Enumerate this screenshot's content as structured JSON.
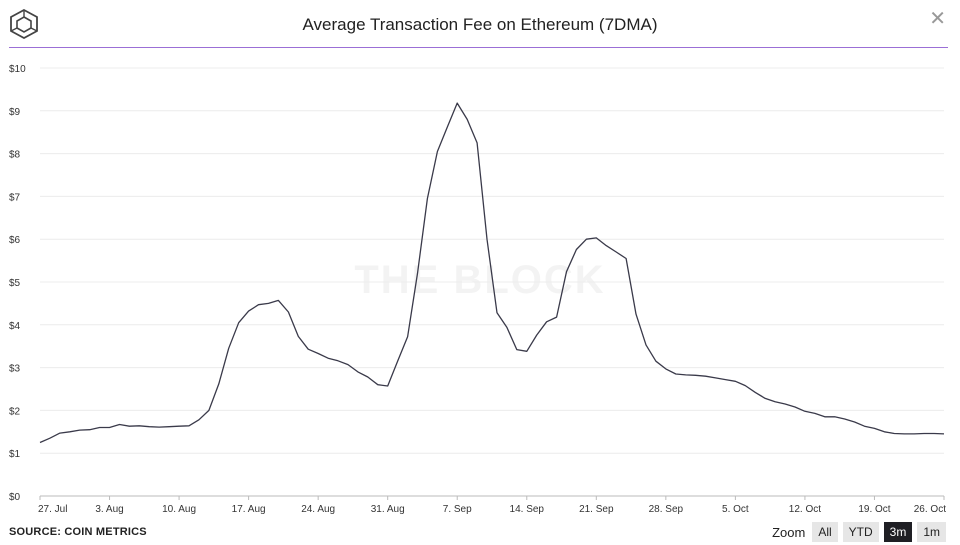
{
  "header": {
    "title": "Average Transaction Fee on Ethereum (7DMA)",
    "logo_icon": "cube-logo-icon",
    "close_label": "✕"
  },
  "watermark": "THE BLOCK",
  "footer": {
    "source": "SOURCE: COIN METRICS",
    "zoom_label": "Zoom",
    "zoom_buttons": [
      {
        "label": "All",
        "active": false
      },
      {
        "label": "YTD",
        "active": false
      },
      {
        "label": "3m",
        "active": true
      },
      {
        "label": "1m",
        "active": false
      }
    ]
  },
  "colors": {
    "accent_rule": "#9b6fd6",
    "line": "#3a3a4a",
    "grid": "#ececec",
    "active_button": "#1f1f24"
  },
  "chart_data": {
    "type": "line",
    "title": "Average Transaction Fee on Ethereum (7DMA)",
    "xlabel": "",
    "ylabel": "",
    "ylim": [
      0,
      10
    ],
    "yticks": [
      "$0",
      "$1",
      "$2",
      "$3",
      "$4",
      "$5",
      "$6",
      "$7",
      "$8",
      "$9",
      "$10"
    ],
    "xticks": [
      "27. Jul",
      "3. Aug",
      "10. Aug",
      "17. Aug",
      "24. Aug",
      "31. Aug",
      "7. Sep",
      "14. Sep",
      "21. Sep",
      "28. Sep",
      "5. Oct",
      "12. Oct",
      "19. Oct",
      "26. Oct"
    ],
    "grid": true,
    "legend": "none",
    "series": [
      {
        "values": [
          [
            0,
            1.25
          ],
          [
            1,
            1.35
          ],
          [
            2,
            1.47
          ],
          [
            3,
            1.5
          ],
          [
            4,
            1.54
          ],
          [
            5,
            1.55
          ],
          [
            6,
            1.6
          ],
          [
            7,
            1.6
          ],
          [
            8,
            1.67
          ],
          [
            9,
            1.63
          ],
          [
            10,
            1.64
          ],
          [
            11,
            1.62
          ],
          [
            12,
            1.61
          ],
          [
            13,
            1.62
          ],
          [
            14,
            1.63
          ],
          [
            15,
            1.64
          ],
          [
            16,
            1.78
          ],
          [
            17,
            2.0
          ],
          [
            18,
            2.62
          ],
          [
            19,
            3.45
          ],
          [
            20,
            4.05
          ],
          [
            21,
            4.32
          ],
          [
            22,
            4.47
          ],
          [
            23,
            4.5
          ],
          [
            24,
            4.57
          ],
          [
            25,
            4.3
          ],
          [
            26,
            3.73
          ],
          [
            27,
            3.43
          ],
          [
            28,
            3.33
          ],
          [
            29,
            3.22
          ],
          [
            30,
            3.16
          ],
          [
            31,
            3.07
          ],
          [
            32,
            2.9
          ],
          [
            33,
            2.78
          ],
          [
            34,
            2.6
          ],
          [
            35,
            2.57
          ],
          [
            36,
            3.15
          ],
          [
            37,
            3.72
          ],
          [
            38,
            5.2
          ],
          [
            39,
            6.95
          ],
          [
            40,
            8.05
          ],
          [
            41,
            8.62
          ],
          [
            42,
            9.18
          ],
          [
            43,
            8.8
          ],
          [
            44,
            8.25
          ],
          [
            45,
            6.0
          ],
          [
            46,
            4.28
          ],
          [
            47,
            3.94
          ],
          [
            48,
            3.42
          ],
          [
            49,
            3.38
          ],
          [
            50,
            3.76
          ],
          [
            51,
            4.07
          ],
          [
            52,
            4.18
          ],
          [
            53,
            5.24
          ],
          [
            54,
            5.76
          ],
          [
            55,
            6.0
          ],
          [
            56,
            6.03
          ],
          [
            57,
            5.85
          ],
          [
            58,
            5.7
          ],
          [
            59,
            5.55
          ],
          [
            60,
            4.25
          ],
          [
            61,
            3.53
          ],
          [
            62,
            3.15
          ],
          [
            63,
            2.97
          ],
          [
            64,
            2.85
          ],
          [
            65,
            2.83
          ],
          [
            66,
            2.82
          ],
          [
            67,
            2.8
          ],
          [
            68,
            2.76
          ],
          [
            69,
            2.72
          ],
          [
            70,
            2.68
          ],
          [
            71,
            2.58
          ],
          [
            72,
            2.42
          ],
          [
            73,
            2.28
          ],
          [
            74,
            2.2
          ],
          [
            75,
            2.15
          ],
          [
            76,
            2.08
          ],
          [
            77,
            1.98
          ],
          [
            78,
            1.93
          ],
          [
            79,
            1.85
          ],
          [
            80,
            1.85
          ],
          [
            81,
            1.8
          ],
          [
            82,
            1.73
          ],
          [
            83,
            1.63
          ],
          [
            84,
            1.58
          ],
          [
            85,
            1.5
          ],
          [
            86,
            1.46
          ],
          [
            87,
            1.45
          ],
          [
            88,
            1.45
          ],
          [
            89,
            1.46
          ],
          [
            90,
            1.46
          ],
          [
            91,
            1.45
          ]
        ]
      }
    ]
  }
}
